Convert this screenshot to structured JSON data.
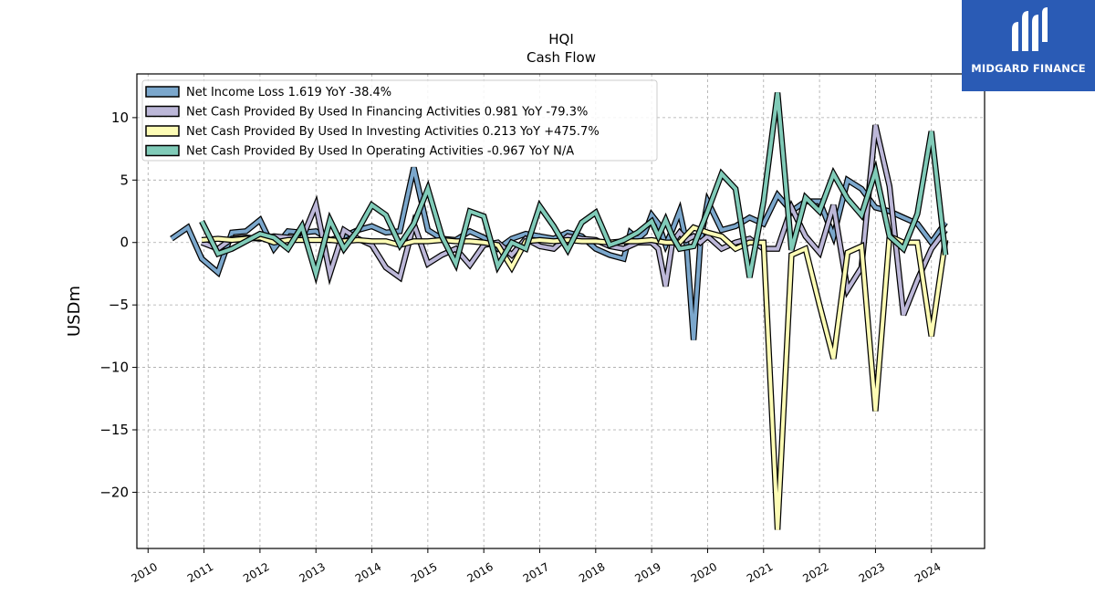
{
  "brand": {
    "name": "MIDGARD FINANCE",
    "bg": "#2a5bb5",
    "mark": "midgard-logo-icon"
  },
  "chart_data": {
    "type": "line",
    "title": "HQI",
    "subtitle": "Cash Flow",
    "xlabel": "",
    "ylabel": "USDm",
    "xlim": [
      2009.8,
      2024.95
    ],
    "ylim": [
      -24.5,
      13.5
    ],
    "x_ticks": [
      "2010",
      "2011",
      "2012",
      "2013",
      "2014",
      "2015",
      "2016",
      "2017",
      "2018",
      "2019",
      "2020",
      "2021",
      "2022",
      "2023",
      "2024"
    ],
    "y_ticks": [
      10,
      5,
      0,
      -5,
      -10,
      -15,
      -20
    ],
    "y_tick_labels": [
      "10",
      "5",
      "0",
      "−5",
      "−10",
      "−15",
      "−20"
    ],
    "grid": true,
    "legend_position": "top-left",
    "series": [
      {
        "name": "Net Income Loss  1.619 YoY -38.4%",
        "color": "#7ba7cc",
        "points": [
          [
            2010.42,
            0.3
          ],
          [
            2010.71,
            1.2
          ],
          [
            2010.96,
            -1.3
          ],
          [
            2011.25,
            -2.4
          ],
          [
            2011.5,
            0.8
          ],
          [
            2011.75,
            0.9
          ],
          [
            2012.0,
            1.8
          ],
          [
            2012.25,
            -0.5
          ],
          [
            2012.5,
            0.9
          ],
          [
            2012.75,
            0.8
          ],
          [
            2013.0,
            0.9
          ],
          [
            2013.25,
            0.2
          ],
          [
            2013.5,
            0.5
          ],
          [
            2013.75,
            1.0
          ],
          [
            2014.0,
            1.3
          ],
          [
            2014.25,
            0.8
          ],
          [
            2014.5,
            0.9
          ],
          [
            2014.75,
            6.0
          ],
          [
            2015.0,
            1.0
          ],
          [
            2015.25,
            0.3
          ],
          [
            2015.5,
            0.2
          ],
          [
            2015.75,
            0.9
          ],
          [
            2016.0,
            0.4
          ],
          [
            2016.25,
            -0.5
          ],
          [
            2016.5,
            0.3
          ],
          [
            2016.75,
            0.7
          ],
          [
            2017.0,
            0.5
          ],
          [
            2017.25,
            0.3
          ],
          [
            2017.5,
            0.8
          ],
          [
            2017.75,
            0.5
          ],
          [
            2018.0,
            -0.5
          ],
          [
            2018.25,
            -1.0
          ],
          [
            2018.5,
            -1.3
          ],
          [
            2018.62,
            0.8
          ],
          [
            2018.75,
            0.3
          ],
          [
            2018.88,
            0.8
          ],
          [
            2019.0,
            2.2
          ],
          [
            2019.12,
            1.5
          ],
          [
            2019.25,
            -0.2
          ],
          [
            2019.37,
            1.0
          ],
          [
            2019.5,
            2.5
          ],
          [
            2019.62,
            0.0
          ],
          [
            2019.75,
            -7.8
          ],
          [
            2019.87,
            0.0
          ],
          [
            2020.0,
            3.3
          ],
          [
            2020.25,
            1.0
          ],
          [
            2020.5,
            1.3
          ],
          [
            2020.75,
            2.0
          ],
          [
            2021.0,
            1.5
          ],
          [
            2021.25,
            3.8
          ],
          [
            2021.5,
            2.5
          ],
          [
            2021.75,
            3.3
          ],
          [
            2022.0,
            3.3
          ],
          [
            2022.25,
            0.5
          ],
          [
            2022.5,
            5.0
          ],
          [
            2022.75,
            4.3
          ],
          [
            2023.0,
            2.8
          ],
          [
            2023.25,
            2.5
          ],
          [
            2023.5,
            2.0
          ],
          [
            2023.75,
            1.5
          ],
          [
            2024.0,
            0.0
          ],
          [
            2024.25,
            1.6
          ]
        ]
      },
      {
        "name": "Net Cash Provided By Used In Financing Activities  0.981 YoY -79.3%",
        "color": "#bcb7d8",
        "points": [
          [
            2010.96,
            0.0
          ],
          [
            2011.25,
            -0.5
          ],
          [
            2011.5,
            0.3
          ],
          [
            2011.75,
            0.4
          ],
          [
            2012.0,
            0.3
          ],
          [
            2012.25,
            0.5
          ],
          [
            2012.5,
            0.4
          ],
          [
            2012.75,
            0.3
          ],
          [
            2013.0,
            3.0
          ],
          [
            2013.25,
            -2.5
          ],
          [
            2013.5,
            1.0
          ],
          [
            2013.75,
            0.3
          ],
          [
            2014.0,
            -0.2
          ],
          [
            2014.25,
            -2.0
          ],
          [
            2014.5,
            -2.8
          ],
          [
            2014.75,
            1.5
          ],
          [
            2015.0,
            -1.7
          ],
          [
            2015.25,
            -1.0
          ],
          [
            2015.5,
            -0.5
          ],
          [
            2015.75,
            -1.8
          ],
          [
            2016.0,
            -0.2
          ],
          [
            2016.25,
            0.0
          ],
          [
            2016.5,
            -1.0
          ],
          [
            2016.75,
            0.3
          ],
          [
            2017.0,
            -0.3
          ],
          [
            2017.25,
            -0.5
          ],
          [
            2017.5,
            0.5
          ],
          [
            2017.75,
            0.3
          ],
          [
            2018.0,
            0.2
          ],
          [
            2018.25,
            -0.3
          ],
          [
            2018.5,
            -0.5
          ],
          [
            2018.75,
            0.0
          ],
          [
            2019.0,
            0.0
          ],
          [
            2019.12,
            -0.5
          ],
          [
            2019.25,
            -3.5
          ],
          [
            2019.37,
            0.0
          ],
          [
            2019.5,
            0.8
          ],
          [
            2019.62,
            0.2
          ],
          [
            2019.75,
            0.5
          ],
          [
            2019.87,
            0.0
          ],
          [
            2020.0,
            0.5
          ],
          [
            2020.25,
            -0.5
          ],
          [
            2020.5,
            0.0
          ],
          [
            2020.75,
            0.3
          ],
          [
            2021.0,
            -0.5
          ],
          [
            2021.25,
            -0.5
          ],
          [
            2021.5,
            2.8
          ],
          [
            2021.75,
            0.5
          ],
          [
            2022.0,
            -0.8
          ],
          [
            2022.25,
            3.0
          ],
          [
            2022.5,
            -3.8
          ],
          [
            2022.75,
            -2.0
          ],
          [
            2023.0,
            9.4
          ],
          [
            2023.25,
            4.5
          ],
          [
            2023.5,
            -5.8
          ],
          [
            2023.75,
            -3.0
          ],
          [
            2024.0,
            -0.5
          ],
          [
            2024.25,
            1.0
          ]
        ]
      },
      {
        "name": "Net Cash Provided By Used In Investing Activities  0.213 YoY +475.7%",
        "color": "#fdfcb5",
        "points": [
          [
            2010.96,
            0.2
          ],
          [
            2011.25,
            0.3
          ],
          [
            2011.5,
            0.2
          ],
          [
            2011.75,
            0.3
          ],
          [
            2012.0,
            0.4
          ],
          [
            2012.25,
            0.0
          ],
          [
            2012.5,
            0.2
          ],
          [
            2012.75,
            0.2
          ],
          [
            2013.0,
            0.2
          ],
          [
            2013.25,
            0.2
          ],
          [
            2013.5,
            0.1
          ],
          [
            2013.75,
            0.2
          ],
          [
            2014.0,
            0.1
          ],
          [
            2014.25,
            0.1
          ],
          [
            2014.5,
            -0.2
          ],
          [
            2014.75,
            0.1
          ],
          [
            2015.0,
            0.1
          ],
          [
            2015.25,
            0.2
          ],
          [
            2015.5,
            0.1
          ],
          [
            2015.75,
            0.1
          ],
          [
            2016.0,
            0.0
          ],
          [
            2016.25,
            -0.2
          ],
          [
            2016.5,
            -2.0
          ],
          [
            2016.75,
            0.1
          ],
          [
            2017.0,
            0.2
          ],
          [
            2017.25,
            0.1
          ],
          [
            2017.5,
            0.2
          ],
          [
            2017.75,
            0.1
          ],
          [
            2018.0,
            0.1
          ],
          [
            2018.25,
            0.0
          ],
          [
            2018.5,
            0.1
          ],
          [
            2018.75,
            0.1
          ],
          [
            2019.0,
            0.2
          ],
          [
            2019.25,
            0.0
          ],
          [
            2019.5,
            0.0
          ],
          [
            2019.75,
            1.2
          ],
          [
            2020.0,
            0.8
          ],
          [
            2020.25,
            0.5
          ],
          [
            2020.5,
            -0.5
          ],
          [
            2020.75,
            0.0
          ],
          [
            2021.0,
            0.0
          ],
          [
            2021.25,
            -23.0
          ],
          [
            2021.5,
            -1.0
          ],
          [
            2021.75,
            -0.5
          ],
          [
            2022.0,
            -5.0
          ],
          [
            2022.25,
            -9.3
          ],
          [
            2022.5,
            -0.8
          ],
          [
            2022.75,
            -0.3
          ],
          [
            2023.0,
            -13.5
          ],
          [
            2023.25,
            0.5
          ],
          [
            2023.5,
            0.0
          ],
          [
            2023.75,
            0.0
          ],
          [
            2024.0,
            -7.5
          ],
          [
            2024.25,
            0.2
          ]
        ]
      },
      {
        "name": "Net Cash Provided By Used In Operating Activities  -0.967 YoY N/A",
        "color": "#80cbb8",
        "points": [
          [
            2010.96,
            1.7
          ],
          [
            2011.25,
            -0.9
          ],
          [
            2011.5,
            -0.5
          ],
          [
            2011.75,
            0.1
          ],
          [
            2012.0,
            0.7
          ],
          [
            2012.25,
            0.4
          ],
          [
            2012.5,
            -0.5
          ],
          [
            2012.75,
            1.3
          ],
          [
            2013.0,
            -2.5
          ],
          [
            2013.25,
            1.8
          ],
          [
            2013.5,
            -0.5
          ],
          [
            2013.75,
            1.0
          ],
          [
            2014.0,
            3.0
          ],
          [
            2014.25,
            2.2
          ],
          [
            2014.5,
            -0.2
          ],
          [
            2014.75,
            1.5
          ],
          [
            2015.0,
            4.3
          ],
          [
            2015.25,
            0.5
          ],
          [
            2015.5,
            -1.7
          ],
          [
            2015.75,
            2.5
          ],
          [
            2016.0,
            2.1
          ],
          [
            2016.25,
            -1.9
          ],
          [
            2016.5,
            0.0
          ],
          [
            2016.75,
            -0.5
          ],
          [
            2017.0,
            2.9
          ],
          [
            2017.25,
            1.3
          ],
          [
            2017.5,
            -0.6
          ],
          [
            2017.75,
            1.6
          ],
          [
            2018.0,
            2.4
          ],
          [
            2018.25,
            -0.2
          ],
          [
            2018.5,
            0.2
          ],
          [
            2018.75,
            0.8
          ],
          [
            2019.0,
            1.7
          ],
          [
            2019.12,
            0.5
          ],
          [
            2019.25,
            1.8
          ],
          [
            2019.37,
            0.5
          ],
          [
            2019.5,
            -0.5
          ],
          [
            2019.75,
            -0.3
          ],
          [
            2020.0,
            2.5
          ],
          [
            2020.25,
            5.5
          ],
          [
            2020.5,
            4.3
          ],
          [
            2020.75,
            -2.8
          ],
          [
            2021.0,
            3.3
          ],
          [
            2021.25,
            12.0
          ],
          [
            2021.5,
            -0.6
          ],
          [
            2021.75,
            3.6
          ],
          [
            2022.0,
            2.5
          ],
          [
            2022.25,
            5.5
          ],
          [
            2022.5,
            3.5
          ],
          [
            2022.75,
            2.2
          ],
          [
            2023.0,
            5.7
          ],
          [
            2023.25,
            0.5
          ],
          [
            2023.5,
            -0.5
          ],
          [
            2023.75,
            2.3
          ],
          [
            2024.0,
            8.9
          ],
          [
            2024.25,
            -1.0
          ]
        ]
      }
    ]
  }
}
